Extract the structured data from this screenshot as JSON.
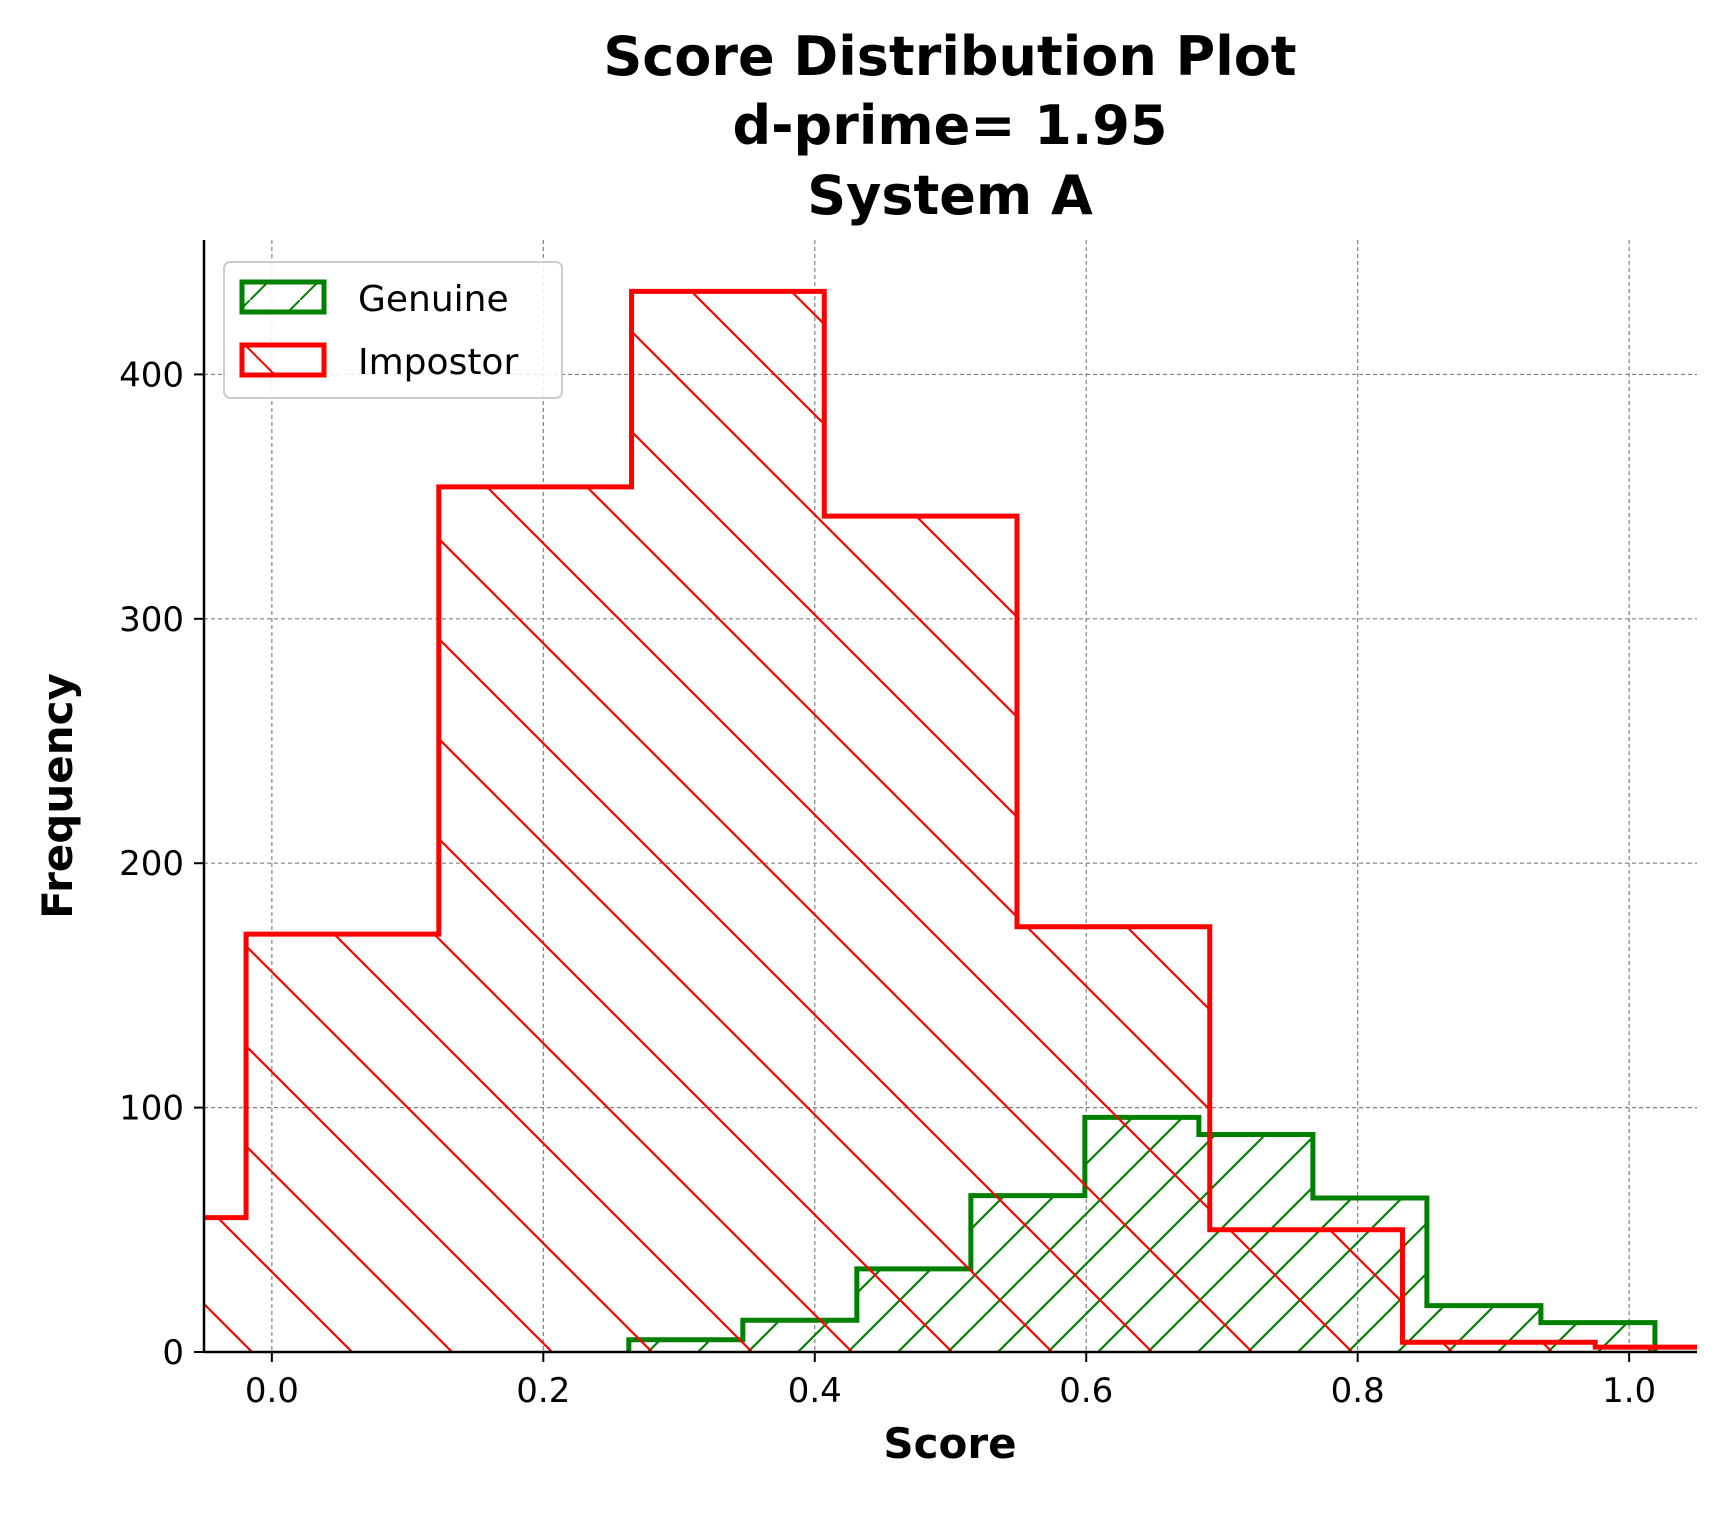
{
  "chart_data": {
    "type": "histogram",
    "title_lines": [
      "Score Distribution Plot",
      "d-prime= 1.95",
      "System A"
    ],
    "xlabel": "Score",
    "ylabel": "Frequency",
    "xlim": [
      -0.05,
      1.05
    ],
    "ylim": [
      0,
      455
    ],
    "xticks": [
      0.0,
      0.2,
      0.4,
      0.6,
      0.8,
      1.0
    ],
    "xtick_labels": [
      "0.0",
      "0.2",
      "0.4",
      "0.6",
      "0.8",
      "1.0"
    ],
    "yticks": [
      0,
      100,
      200,
      300,
      400
    ],
    "ytick_labels": [
      "0",
      "100",
      "200",
      "300",
      "400"
    ],
    "grid": true,
    "legend_position": "top-left",
    "series": [
      {
        "name": "Genuine",
        "color": "#008000",
        "hatch": "/",
        "edges": [
          0.263,
          0.347,
          0.431,
          0.515,
          0.599,
          0.683,
          0.767,
          0.851,
          0.935,
          1.019
        ],
        "counts": [
          5,
          13,
          34,
          64,
          96,
          89,
          63,
          19,
          12
        ]
      },
      {
        "name": "Impostor",
        "color": "#ff0000",
        "hatch": "\\",
        "edges": [
          -0.161,
          -0.019,
          0.123,
          0.265,
          0.407,
          0.549,
          0.691,
          0.833,
          0.975,
          1.117
        ],
        "counts": [
          55,
          171,
          354,
          434,
          342,
          174,
          50,
          4,
          2
        ]
      }
    ]
  }
}
